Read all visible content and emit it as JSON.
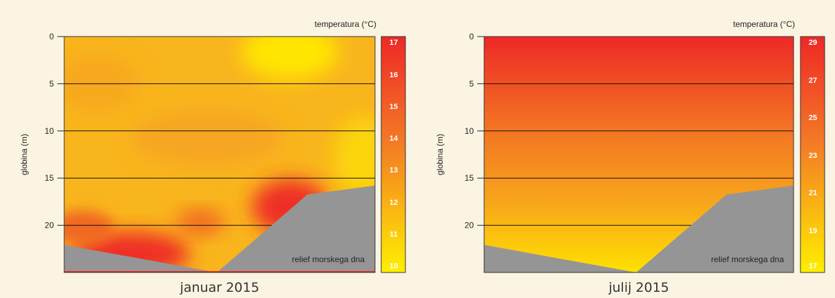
{
  "chart_data": [
    {
      "type": "heatmap",
      "title": "januar 2015",
      "ylabel": "globina (m)",
      "legend_title": "temperatura (°C)",
      "seabed_label": "relief morskega dna",
      "ylim": [
        0,
        25
      ],
      "yticks": [
        0,
        5,
        10,
        15,
        20
      ],
      "grid": true,
      "colorbar": {
        "labels": [
          "17",
          "16",
          "15",
          "14",
          "13",
          "12",
          "11",
          "10"
        ],
        "min": 10,
        "max": 17,
        "colors": [
          "#ee2826",
          "#ffef00"
        ]
      },
      "temperature_regions": [
        {
          "area": "most of water column (0–16 m)",
          "approx_temp": 12
        },
        {
          "area": "surface patch, upper right",
          "approx_temp": 10
        },
        {
          "area": "near seabed, left slope (20–24 m)",
          "approx_temp": 16.5
        },
        {
          "area": "near seabed, right slope (17–22 m)",
          "approx_temp": 16.5
        }
      ],
      "seabed_profile": [
        {
          "x": 0,
          "depth": 22.1
        },
        {
          "x": 0.49,
          "depth": 24.9
        },
        {
          "x": 0.77,
          "depth": 16.7
        },
        {
          "x": 1,
          "depth": 15.8
        }
      ]
    },
    {
      "type": "heatmap",
      "title": "julij 2015",
      "ylabel": "globina (m)",
      "legend_title": "temperatura (°C)",
      "seabed_label": "relief morskega dna",
      "ylim": [
        0,
        25
      ],
      "yticks": [
        0,
        5,
        10,
        15,
        20
      ],
      "grid": true,
      "colorbar": {
        "labels": [
          "29",
          "27",
          "25",
          "23",
          "21",
          "19",
          "17"
        ],
        "min": 17,
        "max": 29,
        "colors": [
          "#ee2826",
          "#ffef00"
        ]
      },
      "temperature_gradient": [
        {
          "depth": 0,
          "temp": 29
        },
        {
          "depth": 25,
          "temp": 17
        }
      ],
      "seabed_profile": [
        {
          "x": 0,
          "depth": 22.1
        },
        {
          "x": 0.49,
          "depth": 24.9
        },
        {
          "x": 0.77,
          "depth": 16.7
        },
        {
          "x": 1,
          "depth": 15.8
        }
      ]
    }
  ]
}
